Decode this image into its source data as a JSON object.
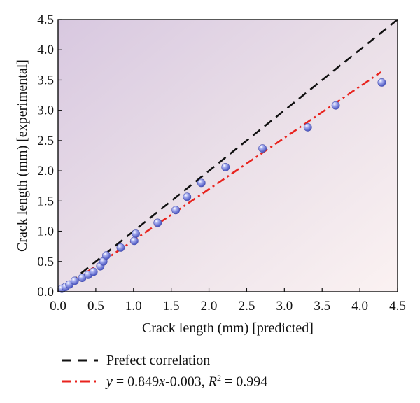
{
  "chart_data": {
    "type": "scatter",
    "xlabel": "Crack length (mm) [predicted]",
    "ylabel": "Crack length (mm) [experimental]",
    "xlim": [
      0,
      4.5
    ],
    "ylim": [
      0,
      4.5
    ],
    "x_ticks": [
      "0.0",
      "0.5",
      "1.0",
      "1.5",
      "2.0",
      "2.5",
      "3.0",
      "3.5",
      "4.0",
      "4.5"
    ],
    "y_ticks": [
      "0.0",
      "0.5",
      "1.0",
      "1.5",
      "2.0",
      "2.5",
      "3.0",
      "3.5",
      "4.0",
      "4.5"
    ],
    "grid": false,
    "legend_position": "bottom",
    "series": [
      {
        "name": "data",
        "marker": "sphere",
        "color": "#6f78d8",
        "points": [
          [
            0.05,
            0.05
          ],
          [
            0.1,
            0.08
          ],
          [
            0.15,
            0.12
          ],
          [
            0.22,
            0.18
          ],
          [
            0.32,
            0.23
          ],
          [
            0.4,
            0.28
          ],
          [
            0.47,
            0.33
          ],
          [
            0.56,
            0.42
          ],
          [
            0.6,
            0.5
          ],
          [
            0.64,
            0.6
          ],
          [
            0.83,
            0.73
          ],
          [
            1.01,
            0.84
          ],
          [
            1.03,
            0.96
          ],
          [
            1.32,
            1.14
          ],
          [
            1.56,
            1.35
          ],
          [
            1.71,
            1.57
          ],
          [
            1.9,
            1.8
          ],
          [
            2.22,
            2.06
          ],
          [
            2.71,
            2.37
          ],
          [
            3.31,
            2.72
          ],
          [
            3.68,
            3.08
          ],
          [
            4.29,
            3.46
          ]
        ]
      }
    ],
    "lines": [
      {
        "name": "Prefect correlation",
        "style": "dashed",
        "color": "#111111",
        "x": [
          0,
          4.5
        ],
        "y": [
          0,
          4.5
        ]
      },
      {
        "name": "fit",
        "style": "dash-dot",
        "color": "#e8231e",
        "slope": 0.849,
        "intercept": -0.003,
        "x": [
          0,
          4.28
        ]
      }
    ]
  },
  "legend": {
    "items": [
      {
        "text": "Prefect correlation"
      },
      {
        "y": "y",
        "eq": " = 0.849",
        "x": "x",
        "rest": "-0.003, ",
        "r": "R",
        "sup": "2",
        "val": " = 0.994"
      }
    ]
  },
  "colors": {
    "bg_top_left": "#d8c8e0",
    "bg_bottom_right": "#fbf2f2",
    "marker": "#6f78d8",
    "fit_line": "#e8231e"
  }
}
